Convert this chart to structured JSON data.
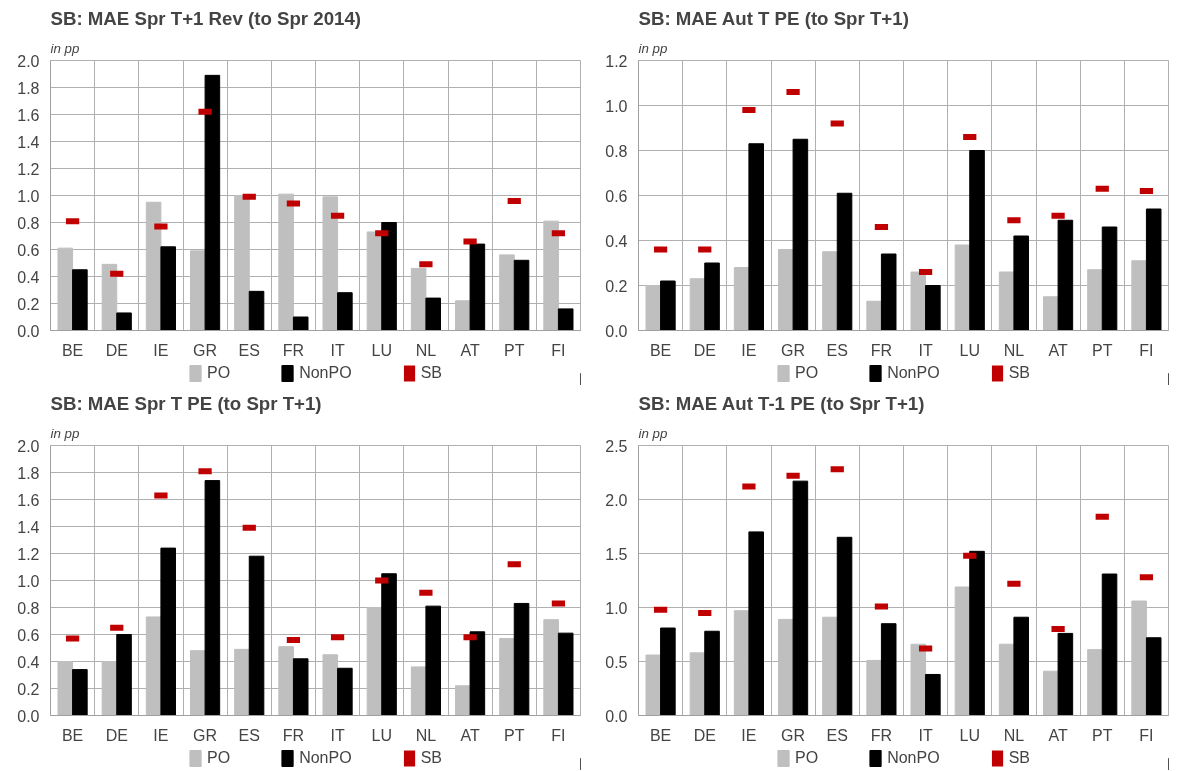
{
  "chart_data": [
    {
      "type": "bar",
      "title": "SB: MAE Spr T+1 Rev (to Spr 2014)",
      "ylabel": "in pp",
      "categories": [
        "BE",
        "DE",
        "IE",
        "GR",
        "ES",
        "FR",
        "IT",
        "LU",
        "NL",
        "AT",
        "PT",
        "FI"
      ],
      "ylim": [
        0,
        2
      ],
      "yticks": [
        {
          "value": 0,
          "label": "0.0"
        },
        0.2,
        0.4,
        0.6,
        0.8,
        {
          "value": 1,
          "label": "1.0"
        },
        1.2,
        1.4,
        1.6,
        1.8,
        {
          "value": 2,
          "label": "2.0"
        }
      ],
      "grid": true,
      "legend": "bottom",
      "series": [
        {
          "name": "PO",
          "type": "bar",
          "color": "#bfbfbf",
          "values": [
            0.61,
            0.49,
            0.95,
            0.59,
            1.0,
            1.01,
            0.99,
            0.73,
            0.46,
            0.22,
            0.56,
            0.81
          ]
        },
        {
          "name": "NonPO",
          "type": "bar",
          "color": "#000000",
          "values": [
            0.45,
            0.13,
            0.62,
            1.89,
            0.29,
            0.1,
            0.28,
            0.8,
            0.24,
            0.64,
            0.52,
            0.16
          ]
        },
        {
          "name": "SB",
          "type": "scatter",
          "color": "#c00000",
          "values": [
            0.81,
            0.42,
            0.77,
            1.62,
            0.99,
            0.94,
            0.85,
            0.72,
            0.49,
            0.66,
            0.96,
            0.72
          ]
        }
      ]
    },
    {
      "type": "bar",
      "title": "SB: MAE Aut T PE (to Spr T+1)",
      "ylabel": "in pp",
      "categories": [
        "BE",
        "DE",
        "IE",
        "GR",
        "ES",
        "FR",
        "IT",
        "LU",
        "NL",
        "AT",
        "PT",
        "FI"
      ],
      "ylim": [
        0,
        1.2
      ],
      "yticks": [
        {
          "value": 0,
          "label": "0.0"
        },
        0.2,
        0.4,
        0.6,
        0.8,
        {
          "value": 1,
          "label": "1.0"
        },
        1.2
      ],
      "grid": true,
      "legend": "bottom",
      "series": [
        {
          "name": "PO",
          "type": "bar",
          "color": "#bfbfbf",
          "values": [
            0.2,
            0.23,
            0.28,
            0.36,
            0.35,
            0.13,
            0.26,
            0.38,
            0.26,
            0.15,
            0.27,
            0.31
          ]
        },
        {
          "name": "NonPO",
          "type": "bar",
          "color": "#000000",
          "values": [
            0.22,
            0.3,
            0.83,
            0.85,
            0.61,
            0.34,
            0.2,
            0.8,
            0.42,
            0.49,
            0.46,
            0.54
          ]
        },
        {
          "name": "SB",
          "type": "scatter",
          "color": "#c00000",
          "values": [
            0.36,
            0.36,
            0.98,
            1.06,
            0.92,
            0.46,
            0.26,
            0.86,
            0.49,
            0.51,
            0.63,
            0.62
          ]
        }
      ]
    },
    {
      "type": "bar",
      "title": "SB: MAE Spr T PE (to Spr T+1)",
      "ylabel": "in pp",
      "categories": [
        "BE",
        "DE",
        "IE",
        "GR",
        "ES",
        "FR",
        "IT",
        "LU",
        "NL",
        "AT",
        "PT",
        "FI"
      ],
      "ylim": [
        0,
        2
      ],
      "yticks": [
        {
          "value": 0,
          "label": "0.0"
        },
        0.2,
        0.4,
        0.6,
        0.8,
        {
          "value": 1,
          "label": "1.0"
        },
        1.2,
        1.4,
        1.6,
        1.8,
        {
          "value": 2,
          "label": "2.0"
        }
      ],
      "grid": true,
      "legend": "bottom",
      "series": [
        {
          "name": "PO",
          "type": "bar",
          "color": "#bfbfbf",
          "values": [
            0.4,
            0.4,
            0.73,
            0.48,
            0.49,
            0.51,
            0.45,
            0.8,
            0.36,
            0.22,
            0.57,
            0.71
          ]
        },
        {
          "name": "NonPO",
          "type": "bar",
          "color": "#000000",
          "values": [
            0.34,
            0.6,
            1.24,
            1.74,
            1.18,
            0.42,
            0.35,
            1.05,
            0.81,
            0.62,
            0.83,
            0.61
          ]
        },
        {
          "name": "SB",
          "type": "scatter",
          "color": "#c00000",
          "values": [
            0.57,
            0.65,
            1.63,
            1.81,
            1.39,
            0.56,
            0.58,
            1.0,
            0.91,
            0.58,
            1.12,
            0.83
          ]
        }
      ]
    },
    {
      "type": "bar",
      "title": "SB: MAE Aut T-1 PE (to Spr T+1)",
      "ylabel": "in pp",
      "categories": [
        "BE",
        "DE",
        "IE",
        "GR",
        "ES",
        "FR",
        "IT",
        "LU",
        "NL",
        "AT",
        "PT",
        "FI"
      ],
      "ylim": [
        0,
        2.5
      ],
      "yticks": [
        {
          "value": 0,
          "label": "0.0"
        },
        0.5,
        {
          "value": 1,
          "label": "1.0"
        },
        1.5,
        {
          "value": 2,
          "label": "2.0"
        },
        2.5
      ],
      "grid": true,
      "legend": "bottom",
      "series": [
        {
          "name": "PO",
          "type": "bar",
          "color": "#bfbfbf",
          "values": [
            0.56,
            0.58,
            0.97,
            0.89,
            0.91,
            0.51,
            0.66,
            1.19,
            0.66,
            0.41,
            0.61,
            1.06
          ]
        },
        {
          "name": "NonPO",
          "type": "bar",
          "color": "#000000",
          "values": [
            0.81,
            0.78,
            1.7,
            2.17,
            1.65,
            0.85,
            0.38,
            1.52,
            0.91,
            0.76,
            1.31,
            0.72
          ]
        },
        {
          "name": "SB",
          "type": "scatter",
          "color": "#c00000",
          "values": [
            0.98,
            0.95,
            2.12,
            2.22,
            2.28,
            1.01,
            0.62,
            1.48,
            1.22,
            0.8,
            1.84,
            1.28
          ]
        }
      ]
    }
  ]
}
